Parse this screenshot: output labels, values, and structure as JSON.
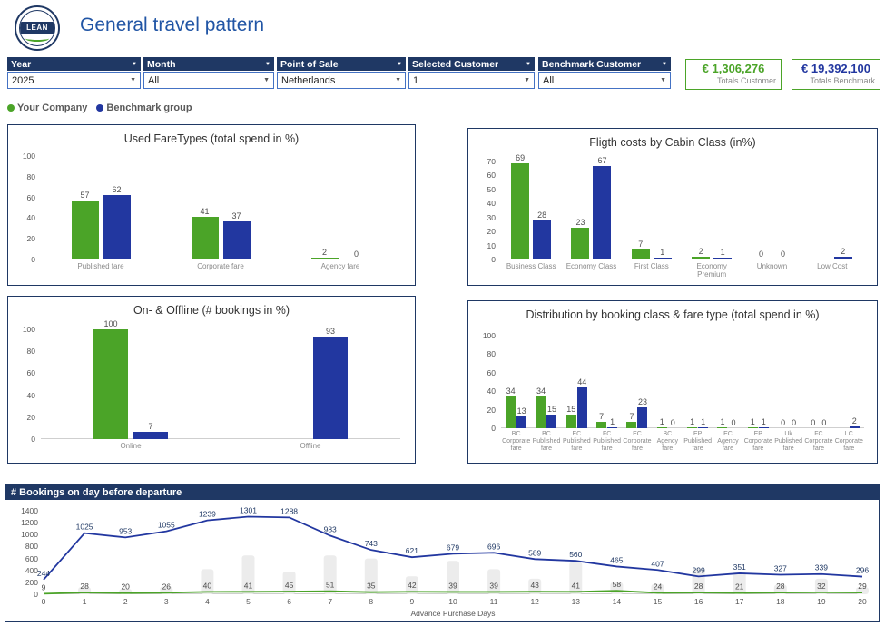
{
  "header": {
    "title": "General travel pattern",
    "logo_text": "LEAN"
  },
  "filters": [
    {
      "label": "Year",
      "value": "2025"
    },
    {
      "label": "Month",
      "value": "All"
    },
    {
      "label": "Point of Sale",
      "value": "Netherlands"
    },
    {
      "label": "Selected Customer",
      "value": "1"
    },
    {
      "label": "Benchmark Customer",
      "value": "All"
    }
  ],
  "kpis": [
    {
      "value": "€ 1,306,276",
      "label": "Totals Customer"
    },
    {
      "value": "€ 19,392,100",
      "label": "Totals Benchmark"
    }
  ],
  "legend": [
    {
      "label": "Your Company",
      "color": "#4BA428"
    },
    {
      "label": "Benchmark group",
      "color": "#2237A0"
    }
  ],
  "colors": {
    "green": "#4BA428",
    "blue": "#2237A0",
    "navy": "#1F3864",
    "title_blue": "#2155A5"
  },
  "chart_data": [
    {
      "type": "bar",
      "title": "Used FareTypes (total spend in %)",
      "categories": [
        "Published fare",
        "Corporate fare",
        "Agency fare"
      ],
      "series": [
        {
          "name": "Your Company",
          "values": [
            57,
            41,
            2
          ]
        },
        {
          "name": "Benchmark group",
          "values": [
            62,
            37,
            0
          ]
        }
      ],
      "ylim": [
        0,
        100
      ],
      "ytick": 20,
      "legend_position": "top-page"
    },
    {
      "type": "bar",
      "title": "Fligth costs by Cabin Class (in%)",
      "categories": [
        "Business Class",
        "Economy Class",
        "First Class",
        "Economy Premium",
        "Unknown",
        "Low Cost"
      ],
      "series": [
        {
          "name": "Your Company",
          "values": [
            69,
            23,
            7,
            2,
            0,
            null
          ]
        },
        {
          "name": "Benchmark group",
          "values": [
            28,
            67,
            1,
            1,
            0,
            2
          ]
        }
      ],
      "ylim": [
        0,
        70
      ],
      "ytick": 10,
      "legend_position": "top-page"
    },
    {
      "type": "bar",
      "title": "On- & Offline (# bookings in %)",
      "categories": [
        "Online",
        "Offline"
      ],
      "series": [
        {
          "name": "Your Company",
          "values": [
            100,
            null
          ]
        },
        {
          "name": "Benchmark group",
          "values": [
            7,
            93
          ]
        }
      ],
      "ylim": [
        0,
        100
      ],
      "ytick": 20,
      "legend_position": "top-page"
    },
    {
      "type": "bar",
      "title": "Distribution by booking class & fare type (total spend in %)",
      "categories": [
        "BC Corporate fare",
        "BC Published fare",
        "EC Published fare",
        "FC Published fare",
        "EC Corporate fare",
        "BC Agency fare",
        "EP Published fare",
        "EC Agency fare",
        "EP Corporate fare",
        "Uk Published fare",
        "FC Corporate fare",
        "LC Corporate fare"
      ],
      "series": [
        {
          "name": "Your Company",
          "values": [
            34,
            34,
            15,
            7,
            7,
            1,
            1,
            1,
            1,
            0,
            0,
            null
          ]
        },
        {
          "name": "Benchmark group",
          "values": [
            13,
            15,
            44,
            1,
            23,
            0,
            1,
            0,
            1,
            0,
            0,
            2
          ]
        }
      ],
      "ylim": [
        0,
        100
      ],
      "ytick": 20,
      "legend_position": "top-page"
    },
    {
      "type": "line",
      "title": "# Bookings on day before departure",
      "x": [
        0,
        1,
        2,
        3,
        4,
        5,
        6,
        7,
        8,
        9,
        10,
        11,
        12,
        13,
        14,
        15,
        16,
        17,
        18,
        19,
        20
      ],
      "series": [
        {
          "name": "Your Company",
          "values": [
            9,
            28,
            20,
            26,
            40,
            41,
            45,
            51,
            35,
            42,
            39,
            39,
            43,
            41,
            58,
            24,
            28,
            21,
            28,
            32,
            29
          ]
        },
        {
          "name": "Benchmark group",
          "values": [
            244,
            1025,
            953,
            1055,
            1239,
            1301,
            1288,
            983,
            743,
            621,
            679,
            696,
            589,
            560,
            465,
            407,
            299,
            351,
            327,
            339,
            296
          ]
        }
      ],
      "xlabel": "Advance Purchase Days",
      "ylim": [
        0,
        1400
      ],
      "ytick": 200,
      "grid": false
    }
  ]
}
